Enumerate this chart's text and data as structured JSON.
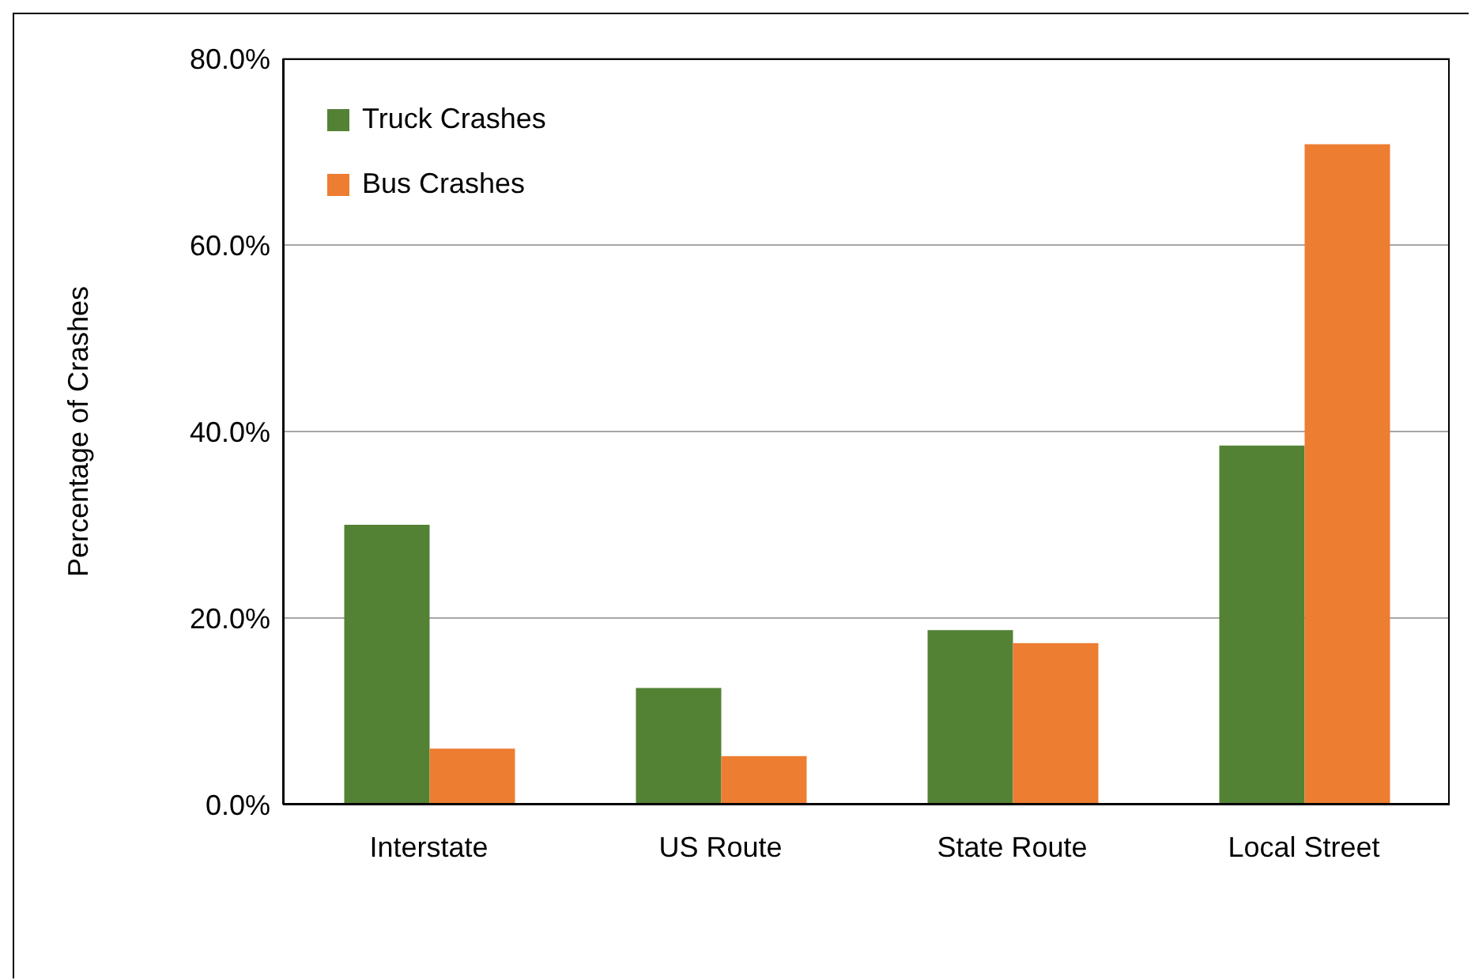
{
  "chart_data": {
    "type": "bar",
    "ylabel": "Percentage of Crashes",
    "categories": [
      "Interstate",
      "US Route",
      "State Route",
      "Local Street"
    ],
    "series": [
      {
        "name": "Truck Crashes",
        "color": "#548235",
        "values": [
          30.0,
          12.5,
          18.7,
          38.5
        ]
      },
      {
        "name": "Bus Crashes",
        "color": "#ed7d31",
        "values": [
          6.0,
          5.2,
          17.3,
          70.8
        ]
      }
    ],
    "ylim": [
      0,
      80
    ],
    "yticks": [
      {
        "value": 0,
        "label": "0.0%"
      },
      {
        "value": 20,
        "label": "20.0%"
      },
      {
        "value": 40,
        "label": "40.0%"
      },
      {
        "value": 60,
        "label": "60.0%"
      },
      {
        "value": 80,
        "label": "80.0%"
      }
    ],
    "grid": "y",
    "legend": "top left"
  }
}
